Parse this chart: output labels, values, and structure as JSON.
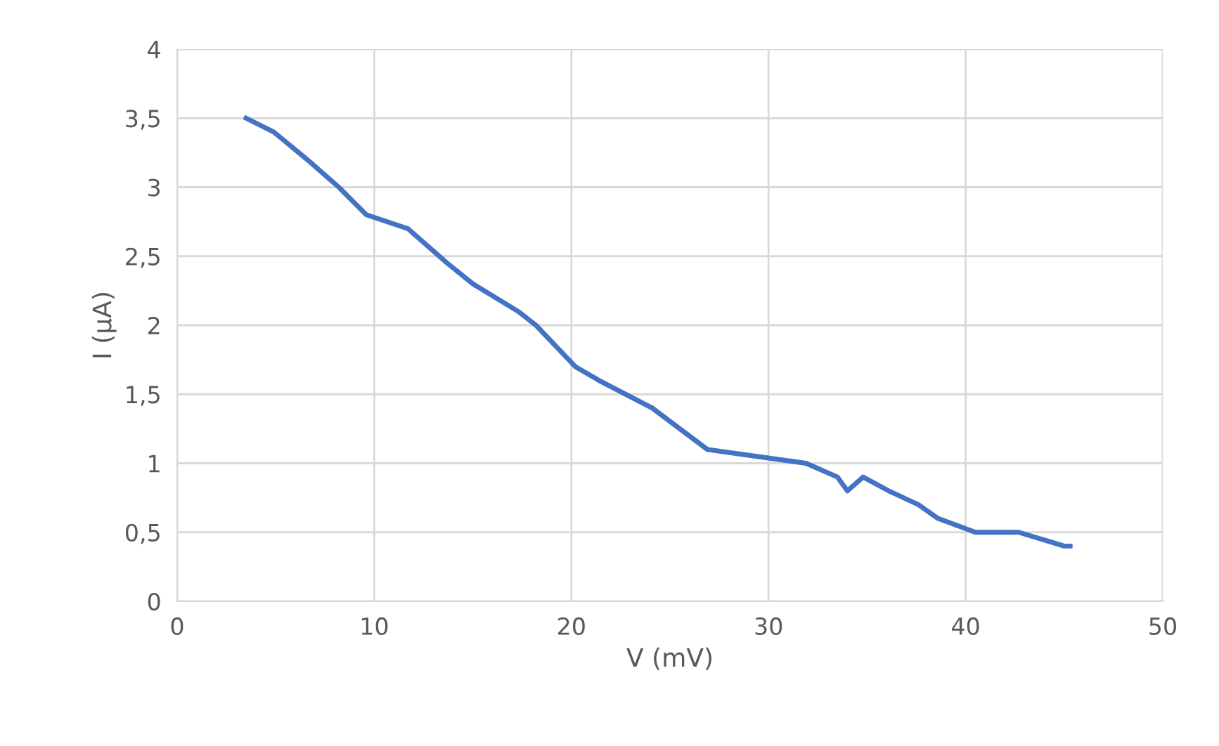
{
  "chart_data": {
    "type": "line",
    "xlabel": "V (mV)",
    "ylabel": "I (µA)",
    "x": [
      3.5,
      4.9,
      6.6,
      8.2,
      9.6,
      11.7,
      13.7,
      15.0,
      17.3,
      18.2,
      20.2,
      21.4,
      24.1,
      26.9,
      31.9,
      33.5,
      34.0,
      34.8,
      36.1,
      37.6,
      38.6,
      40.5,
      42.7,
      45.0,
      45.3
    ],
    "series": [
      {
        "color": "#4472c4",
        "values": [
          3.5,
          3.4,
          3.2,
          3.0,
          2.8,
          2.7,
          2.45,
          2.3,
          2.1,
          2.0,
          1.7,
          1.6,
          1.4,
          1.1,
          1.0,
          0.9,
          0.8,
          0.9,
          0.8,
          0.7,
          0.6,
          0.5,
          0.5,
          0.4,
          0.4
        ]
      }
    ],
    "xlim": [
      0,
      50
    ],
    "xticks": [
      0,
      10,
      20,
      30,
      40,
      50
    ],
    "ylim": [
      0,
      4
    ],
    "yticks": [
      0,
      {
        "value": 0.5,
        "label": "0,5"
      },
      1,
      {
        "value": 1.5,
        "label": "1,5"
      },
      2,
      {
        "value": 2.5,
        "label": "2,5"
      },
      3,
      {
        "value": 3.5,
        "label": "3,5"
      },
      4
    ],
    "grid": true,
    "marker": "none",
    "line_style": "solid"
  }
}
